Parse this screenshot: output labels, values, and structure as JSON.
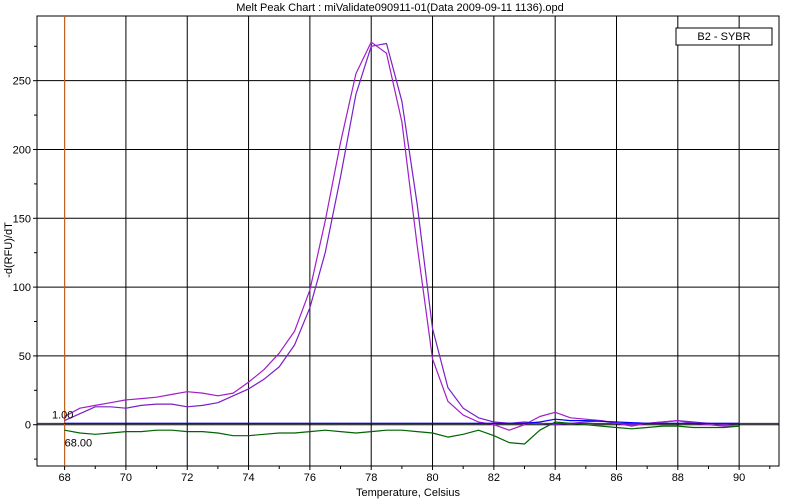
{
  "chart_data": {
    "type": "line",
    "title": "Melt Peak Chart : miValidate090911-01(Data 2009-09-11 1136).opd",
    "xlabel": "Temperature, Celsius",
    "ylabel": "-d(RFU)/dT",
    "xlim": [
      67.1,
      91.3
    ],
    "ylim": [
      -30,
      297
    ],
    "x_ticks": [
      "68",
      "70",
      "72",
      "74",
      "76",
      "78",
      "80",
      "82",
      "84",
      "86",
      "88",
      "90"
    ],
    "y_ticks": [
      "0",
      "50",
      "100",
      "150",
      "200",
      "250"
    ],
    "grid": true,
    "legend": {
      "position": "top-right",
      "entries": [
        "B2 - SYBR"
      ]
    },
    "annotations": {
      "threshold_label": "1.00",
      "threshold_value": 1.0,
      "marker_label": "68.00",
      "marker_value": 68.0
    },
    "series": [
      {
        "color": "#7b1fc8",
        "x": [
          68,
          68.5,
          69,
          69.5,
          70,
          70.5,
          71,
          71.5,
          72,
          72.5,
          73,
          73.5,
          74,
          74.5,
          75,
          75.5,
          76,
          76.5,
          77,
          77.5,
          78,
          78.5,
          79,
          79.5,
          80,
          80.5,
          81,
          81.5,
          82,
          82.5,
          83,
          83.5,
          84,
          84.5,
          85,
          85.5,
          86,
          86.5,
          87,
          87.5,
          88,
          88.5,
          89,
          89.5,
          90
        ],
        "y": [
          3,
          8,
          13,
          13,
          12,
          14,
          15,
          15,
          13,
          14,
          16,
          21,
          26,
          33,
          42,
          58,
          85,
          125,
          180,
          240,
          275,
          277,
          235,
          160,
          70,
          27,
          12,
          5,
          2,
          1,
          2,
          1,
          0,
          1,
          2,
          3,
          1,
          0,
          1,
          2,
          3,
          2,
          1,
          0,
          1
        ]
      },
      {
        "color": "#a01ec8",
        "x": [
          68,
          68.5,
          69,
          69.5,
          70,
          70.5,
          71,
          71.5,
          72,
          72.5,
          73,
          73.5,
          74,
          74.5,
          75,
          75.5,
          76,
          76.5,
          77,
          77.5,
          78,
          78.5,
          79,
          79.5,
          80,
          80.5,
          81,
          81.5,
          82,
          82.5,
          83,
          83.5,
          84,
          84.5,
          85,
          85.5,
          86,
          86.5,
          87,
          87.5,
          88,
          88.5,
          89,
          89.5,
          90
        ],
        "y": [
          6,
          12,
          14,
          16,
          18,
          19,
          20,
          22,
          24,
          23,
          21,
          23,
          31,
          40,
          52,
          68,
          98,
          148,
          205,
          255,
          278,
          270,
          220,
          130,
          48,
          17,
          7,
          2,
          0,
          -4,
          0,
          6,
          9,
          5,
          4,
          3,
          1,
          -1,
          1,
          2,
          3,
          1,
          0,
          -1,
          -1
        ]
      },
      {
        "color": "#0000ff",
        "x": [
          68,
          69,
          70,
          71,
          72,
          73,
          74,
          75,
          76,
          77,
          78,
          79,
          80,
          81,
          82,
          82.5,
          83,
          83.5,
          84,
          84.5,
          85,
          86,
          87,
          88,
          89,
          90
        ],
        "y": [
          1,
          1,
          1,
          1,
          1,
          1,
          1,
          1,
          1,
          1,
          1,
          1,
          1,
          1,
          1,
          1,
          1,
          2,
          4,
          3,
          3,
          2,
          1,
          1,
          1,
          1
        ]
      },
      {
        "color": "#006400",
        "x": [
          68,
          68.5,
          69,
          69.5,
          70,
          70.5,
          71,
          71.5,
          72,
          72.5,
          73,
          73.5,
          74,
          74.5,
          75,
          75.5,
          76,
          76.5,
          77,
          77.5,
          78,
          78.5,
          79,
          79.5,
          80,
          80.5,
          81,
          81.5,
          82,
          82.5,
          83,
          83.5,
          84,
          84.5,
          85,
          85.5,
          86,
          86.5,
          87,
          87.5,
          88,
          88.5,
          89,
          89.5,
          90
        ],
        "y": [
          -4,
          -6,
          -7,
          -6,
          -5,
          -5,
          -4,
          -4,
          -5,
          -5,
          -6,
          -8,
          -8,
          -7,
          -6,
          -6,
          -5,
          -4,
          -5,
          -6,
          -5,
          -4,
          -4,
          -5,
          -6,
          -9,
          -7,
          -4,
          -8,
          -13,
          -14,
          -4,
          2,
          1,
          0,
          -1,
          -2,
          -3,
          -2,
          -1,
          -1,
          -2,
          -2,
          -2,
          -1
        ]
      }
    ]
  }
}
